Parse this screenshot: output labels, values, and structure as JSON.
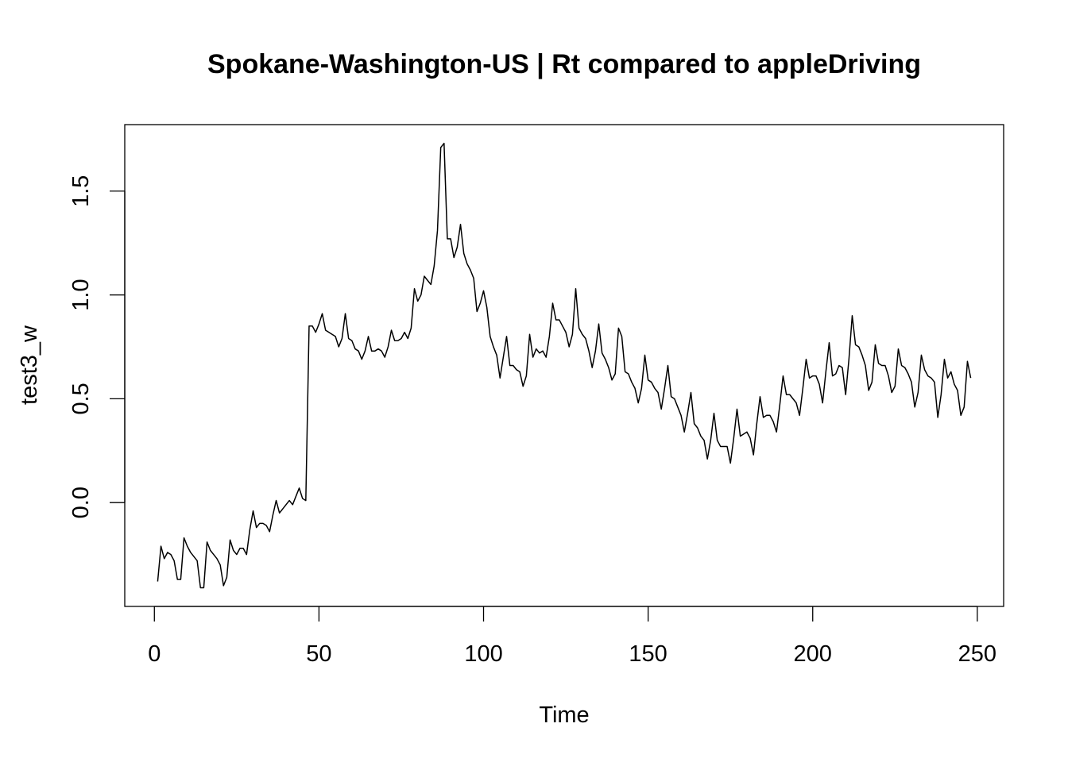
{
  "chart_data": {
    "type": "line",
    "title": "Spokane-Washington-US | Rt compared to appleDriving",
    "xlabel": "Time",
    "ylabel": "test3_w",
    "xlim": [
      -9,
      258
    ],
    "ylim": [
      -0.5,
      1.82
    ],
    "xticks": [
      0,
      50,
      100,
      150,
      200,
      250
    ],
    "xtick_labels": [
      "0",
      "50",
      "100",
      "150",
      "200",
      "250"
    ],
    "yticks": [
      0.0,
      0.5,
      1.0,
      1.5
    ],
    "ytick_labels": [
      "0.0",
      "0.5",
      "1.0",
      "1.5"
    ],
    "grid": false,
    "series": [
      {
        "color": "#000000",
        "x": [
          1,
          2,
          3,
          4,
          5,
          6,
          7,
          8,
          9,
          10,
          11,
          12,
          13,
          14,
          15,
          16,
          17,
          18,
          19,
          20,
          21,
          22,
          23,
          24,
          25,
          26,
          27,
          28,
          29,
          30,
          31,
          32,
          33,
          34,
          35,
          36,
          37,
          38,
          39,
          40,
          41,
          42,
          43,
          44,
          45,
          46,
          47,
          48,
          49,
          50,
          51,
          52,
          53,
          54,
          55,
          56,
          57,
          58,
          59,
          60,
          61,
          62,
          63,
          64,
          65,
          66,
          67,
          68,
          69,
          70,
          71,
          72,
          73,
          74,
          75,
          76,
          77,
          78,
          79,
          80,
          81,
          82,
          83,
          84,
          85,
          86,
          87,
          88,
          89,
          90,
          91,
          92,
          93,
          94,
          95,
          96,
          97,
          98,
          99,
          100,
          101,
          102,
          103,
          104,
          105,
          106,
          107,
          108,
          109,
          110,
          111,
          112,
          113,
          114,
          115,
          116,
          117,
          118,
          119,
          120,
          121,
          122,
          123,
          124,
          125,
          126,
          127,
          128,
          129,
          130,
          131,
          132,
          133,
          134,
          135,
          136,
          137,
          138,
          139,
          140,
          141,
          142,
          143,
          144,
          145,
          146,
          147,
          148,
          149,
          150,
          151,
          152,
          153,
          154,
          155,
          156,
          157,
          158,
          159,
          160,
          161,
          162,
          163,
          164,
          165,
          166,
          167,
          168,
          169,
          170,
          171,
          172,
          173,
          174,
          175,
          176,
          177,
          178,
          179,
          180,
          181,
          182,
          183,
          184,
          185,
          186,
          187,
          188,
          189,
          190,
          191,
          192,
          193,
          194,
          195,
          196,
          197,
          198,
          199,
          200,
          201,
          202,
          203,
          204,
          205,
          206,
          207,
          208,
          209,
          210,
          211,
          212,
          213,
          214,
          215,
          216,
          217,
          218,
          219,
          220,
          221,
          222,
          223,
          224,
          225,
          226,
          227,
          228,
          229,
          230,
          231,
          232,
          233,
          234,
          235,
          236,
          237,
          238,
          239,
          240,
          241,
          242,
          243,
          244,
          245,
          246,
          247,
          248
        ],
        "y": [
          -0.38,
          -0.21,
          -0.27,
          -0.24,
          -0.25,
          -0.28,
          -0.37,
          -0.37,
          -0.17,
          -0.21,
          -0.24,
          -0.26,
          -0.28,
          -0.41,
          -0.41,
          -0.19,
          -0.23,
          -0.25,
          -0.27,
          -0.3,
          -0.4,
          -0.36,
          -0.18,
          -0.23,
          -0.25,
          -0.22,
          -0.22,
          -0.25,
          -0.13,
          -0.04,
          -0.12,
          -0.1,
          -0.1,
          -0.11,
          -0.14,
          -0.06,
          0.01,
          -0.05,
          -0.03,
          -0.01,
          0.01,
          -0.01,
          0.03,
          0.07,
          0.02,
          0.01,
          0.85,
          0.85,
          0.82,
          0.86,
          0.91,
          0.83,
          0.82,
          0.81,
          0.8,
          0.75,
          0.79,
          0.91,
          0.79,
          0.78,
          0.74,
          0.73,
          0.69,
          0.73,
          0.8,
          0.73,
          0.73,
          0.74,
          0.73,
          0.7,
          0.75,
          0.83,
          0.78,
          0.78,
          0.79,
          0.82,
          0.79,
          0.84,
          1.03,
          0.97,
          1.0,
          1.09,
          1.07,
          1.05,
          1.14,
          1.31,
          1.71,
          1.73,
          1.27,
          1.27,
          1.18,
          1.23,
          1.34,
          1.2,
          1.15,
          1.12,
          1.08,
          0.92,
          0.96,
          1.02,
          0.94,
          0.8,
          0.75,
          0.71,
          0.6,
          0.7,
          0.8,
          0.66,
          0.66,
          0.64,
          0.63,
          0.56,
          0.61,
          0.81,
          0.7,
          0.74,
          0.72,
          0.73,
          0.7,
          0.8,
          0.96,
          0.88,
          0.88,
          0.85,
          0.82,
          0.75,
          0.81,
          1.03,
          0.84,
          0.81,
          0.79,
          0.73,
          0.65,
          0.73,
          0.86,
          0.72,
          0.69,
          0.65,
          0.59,
          0.62,
          0.84,
          0.8,
          0.63,
          0.62,
          0.58,
          0.55,
          0.48,
          0.55,
          0.71,
          0.59,
          0.58,
          0.55,
          0.53,
          0.45,
          0.55,
          0.66,
          0.51,
          0.5,
          0.46,
          0.42,
          0.34,
          0.43,
          0.53,
          0.38,
          0.36,
          0.32,
          0.3,
          0.21,
          0.3,
          0.43,
          0.3,
          0.27,
          0.27,
          0.27,
          0.19,
          0.31,
          0.45,
          0.32,
          0.33,
          0.34,
          0.31,
          0.23,
          0.38,
          0.51,
          0.41,
          0.42,
          0.42,
          0.39,
          0.34,
          0.47,
          0.61,
          0.52,
          0.52,
          0.5,
          0.48,
          0.42,
          0.55,
          0.69,
          0.6,
          0.61,
          0.61,
          0.57,
          0.48,
          0.63,
          0.77,
          0.61,
          0.62,
          0.66,
          0.65,
          0.52,
          0.69,
          0.9,
          0.76,
          0.75,
          0.71,
          0.66,
          0.54,
          0.58,
          0.76,
          0.67,
          0.66,
          0.66,
          0.61,
          0.53,
          0.56,
          0.74,
          0.66,
          0.65,
          0.62,
          0.58,
          0.46,
          0.53,
          0.71,
          0.64,
          0.61,
          0.6,
          0.58,
          0.41,
          0.52,
          0.69,
          0.6,
          0.63,
          0.57,
          0.54,
          0.42,
          0.46,
          0.68,
          0.6
        ]
      }
    ]
  }
}
